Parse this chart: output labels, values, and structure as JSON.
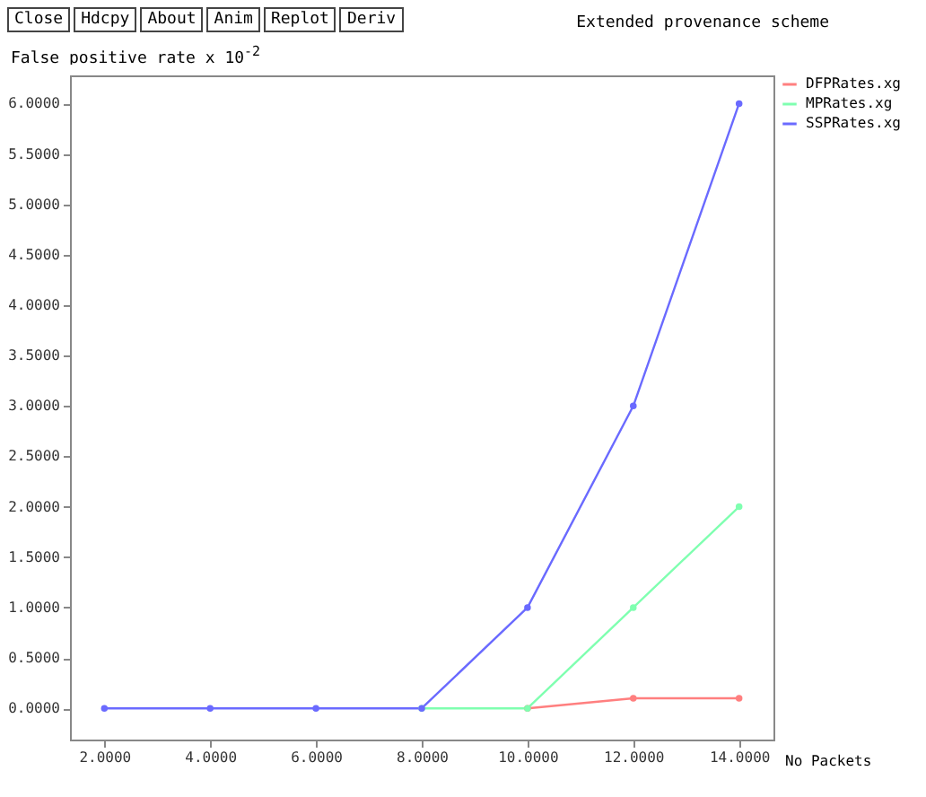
{
  "chart_data": {
    "type": "line",
    "title": "Extended provenance scheme",
    "ylabel": "False positive rate x 10$^{-2}$",
    "xlabel": "No Packets",
    "annotations": [
      "Close",
      "Hdcpy",
      "About",
      "Anim",
      "Replot",
      "Deriv"
    ],
    "x": [
      2,
      4,
      6,
      8,
      10,
      12,
      14
    ],
    "series": [
      {
        "name": "DFPRates.xg",
        "color": "#ff7f7f",
        "values": [
          null,
          null,
          null,
          null,
          0,
          0.1,
          0.1
        ]
      },
      {
        "name": "MPRates.xg",
        "color": "#7fffb0",
        "values": [
          null,
          null,
          null,
          0,
          0,
          1,
          2
        ]
      },
      {
        "name": "SSPRates.xg",
        "color": "#6a6aff",
        "values": [
          0,
          0,
          0,
          0,
          1,
          3,
          6
        ]
      }
    ],
    "xlim": [
      1.35,
      14.65
    ],
    "ylim": [
      -0.31,
      6.28
    ],
    "xticks": [
      {
        "value": 2,
        "label": "2.0000"
      },
      {
        "value": 4,
        "label": "4.0000"
      },
      {
        "value": 6,
        "label": "6.0000"
      },
      {
        "value": 8,
        "label": "8.0000"
      },
      {
        "value": 10,
        "label": "10.0000"
      },
      {
        "value": 12,
        "label": "12.0000"
      },
      {
        "value": 14,
        "label": "14.0000"
      }
    ],
    "yticks": [
      {
        "value": 0,
        "label": "0.0000"
      },
      {
        "value": 0.5,
        "label": "0.5000"
      },
      {
        "value": 1,
        "label": "1.0000"
      },
      {
        "value": 1.5,
        "label": "1.5000"
      },
      {
        "value": 2,
        "label": "2.0000"
      },
      {
        "value": 2.5,
        "label": "2.5000"
      },
      {
        "value": 3,
        "label": "3.0000"
      },
      {
        "value": 3.5,
        "label": "3.5000"
      },
      {
        "value": 4,
        "label": "4.0000"
      },
      {
        "value": 4.5,
        "label": "4.5000"
      },
      {
        "value": 5,
        "label": "5.0000"
      },
      {
        "value": 5.5,
        "label": "5.5000"
      },
      {
        "value": 6,
        "label": "6.0000"
      }
    ],
    "grid": false,
    "legend": "top right",
    "marker": "circle",
    "line_style": "solid"
  }
}
